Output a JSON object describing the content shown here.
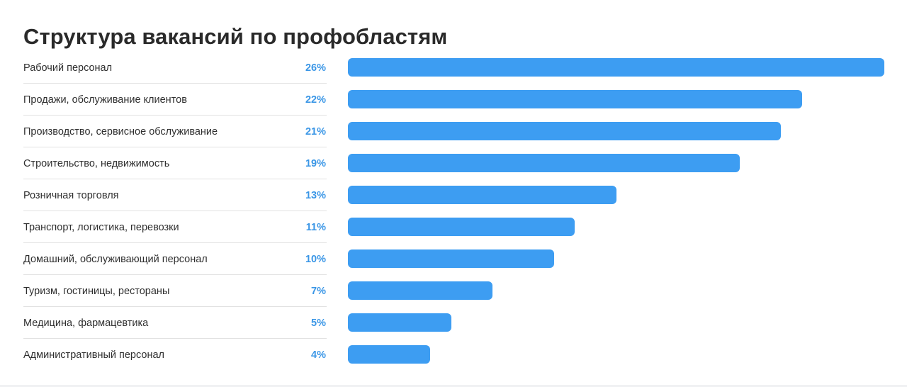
{
  "chart_data": {
    "type": "bar",
    "orientation": "horizontal",
    "title": "Структура вакансий по профобластям",
    "categories": [
      "Рабочий персонал",
      "Продажи, обслуживание клиентов",
      "Производство, сервисное обслуживание",
      "Строительство, недвижимость",
      "Розничная торговля",
      "Транспорт, логистика, перевозки",
      "Домашний, обслуживающий персонал",
      "Туризм, гостиницы, рестораны",
      "Медицина, фармацевтика",
      "Административный персонал"
    ],
    "values": [
      26,
      22,
      21,
      19,
      13,
      11,
      10,
      7,
      5,
      4
    ],
    "value_labels": [
      "26%",
      "22%",
      "21%",
      "19%",
      "13%",
      "11%",
      "10%",
      "7%",
      "5%",
      "4%"
    ],
    "unit": "%",
    "xlim": [
      0,
      26
    ],
    "grid": false,
    "legend": "none",
    "colors": {
      "bar": "#3d9df2",
      "value_label": "#3a96e6",
      "label": "#2f2f2f",
      "title": "#2a2a2a",
      "divider": "#e2e2e2"
    }
  }
}
